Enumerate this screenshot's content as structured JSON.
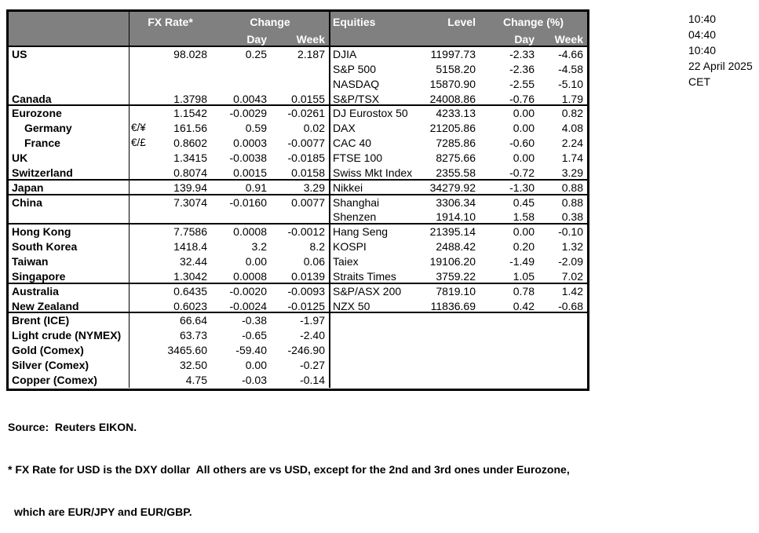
{
  "header": {
    "fx_rate": "FX Rate*",
    "change": "Change",
    "day_left": "Day",
    "week_left": "Week",
    "equities": "Equities",
    "level": "Level",
    "change_pct": "Change (%)",
    "day_right": "Day",
    "week_right": "Week"
  },
  "rows": [
    {
      "name": "US",
      "pair": "",
      "rate": "98.028",
      "day": "0.25",
      "week": "2.187",
      "eq": "DJIA",
      "level": "11997.73",
      "eday": "-2.33",
      "eweek": "-4.66",
      "indent": false,
      "sec": false
    },
    {
      "name": "",
      "pair": "",
      "rate": "",
      "day": "",
      "week": "",
      "eq": "S&P 500",
      "level": "5158.20",
      "eday": "-2.36",
      "eweek": "-4.58",
      "indent": false,
      "sec": false
    },
    {
      "name": "",
      "pair": "",
      "rate": "",
      "day": "",
      "week": "",
      "eq": "NASDAQ",
      "level": "15870.90",
      "eday": "-2.55",
      "eweek": "-5.10",
      "indent": false,
      "sec": false
    },
    {
      "name": "Canada",
      "pair": "",
      "rate": "1.3798",
      "day": "0.0043",
      "week": "0.0155",
      "eq": "S&P/TSX",
      "level": "24008.86",
      "eday": "-0.76",
      "eweek": "1.79",
      "indent": false,
      "sec": true
    },
    {
      "name": "Eurozone",
      "pair": "",
      "rate": "1.1542",
      "day": "-0.0029",
      "week": "-0.0261",
      "eq": "DJ Eurostox 50",
      "level": "4233.13",
      "eday": "0.00",
      "eweek": "0.82",
      "indent": false,
      "sec": false
    },
    {
      "name": "Germany",
      "pair": "€/¥",
      "rate": "161.56",
      "day": "0.59",
      "week": "0.02",
      "eq": "DAX",
      "level": "21205.86",
      "eday": "0.00",
      "eweek": "4.08",
      "indent": true,
      "sec": false
    },
    {
      "name": "France",
      "pair": "€/£",
      "rate": "0.8602",
      "day": "0.0003",
      "week": "-0.0077",
      "eq": "CAC 40",
      "level": "7285.86",
      "eday": "-0.60",
      "eweek": "2.24",
      "indent": true,
      "sec": false
    },
    {
      "name": "UK",
      "pair": "",
      "rate": "1.3415",
      "day": "-0.0038",
      "week": "-0.0185",
      "eq": "FTSE 100",
      "level": "8275.66",
      "eday": "0.00",
      "eweek": "1.74",
      "indent": false,
      "sec": false
    },
    {
      "name": "Switzerland",
      "pair": "",
      "rate": "0.8074",
      "day": "0.0015",
      "week": "0.0158",
      "eq": "Swiss Mkt Index",
      "level": "2355.58",
      "eday": "-0.72",
      "eweek": "3.29",
      "indent": false,
      "sec": true
    },
    {
      "name": "Japan",
      "pair": "",
      "rate": "139.94",
      "day": "0.91",
      "week": "3.29",
      "eq": "Nikkei",
      "level": "34279.92",
      "eday": "-1.30",
      "eweek": "0.88",
      "indent": false,
      "sec": true
    },
    {
      "name": "China",
      "pair": "",
      "rate": "7.3074",
      "day": "-0.0160",
      "week": "0.0077",
      "eq": "Shanghai",
      "level": "3306.34",
      "eday": "0.45",
      "eweek": "0.88",
      "indent": false,
      "sec": false
    },
    {
      "name": "",
      "pair": "",
      "rate": "",
      "day": "",
      "week": "",
      "eq": "Shenzen",
      "level": "1914.10",
      "eday": "1.58",
      "eweek": "0.38",
      "indent": false,
      "sec": true
    },
    {
      "name": "Hong Kong",
      "pair": "",
      "rate": "7.7586",
      "day": "0.0008",
      "week": "-0.0012",
      "eq": "Hang Seng",
      "level": "21395.14",
      "eday": "0.00",
      "eweek": "-0.10",
      "indent": false,
      "sec": false
    },
    {
      "name": "South Korea",
      "pair": "",
      "rate": "1418.4",
      "day": "3.2",
      "week": "8.2",
      "eq": "KOSPI",
      "level": "2488.42",
      "eday": "0.20",
      "eweek": "1.32",
      "indent": false,
      "sec": false
    },
    {
      "name": "Taiwan",
      "pair": "",
      "rate": "32.44",
      "day": "0.00",
      "week": "0.06",
      "eq": "Taiex",
      "level": "19106.20",
      "eday": "-1.49",
      "eweek": "-2.09",
      "indent": false,
      "sec": false
    },
    {
      "name": "Singapore",
      "pair": "",
      "rate": "1.3042",
      "day": "0.0008",
      "week": "0.0139",
      "eq": "Straits Times",
      "level": "3759.22",
      "eday": "1.05",
      "eweek": "7.02",
      "indent": false,
      "sec": true
    },
    {
      "name": "Australia",
      "pair": "",
      "rate": "0.6435",
      "day": "-0.0020",
      "week": "-0.0093",
      "eq": "S&P/ASX 200",
      "level": "7819.10",
      "eday": "0.78",
      "eweek": "1.42",
      "indent": false,
      "sec": false
    },
    {
      "name": "New Zealand",
      "pair": "",
      "rate": "0.6023",
      "day": "-0.0024",
      "week": "-0.0125",
      "eq": "NZX 50",
      "level": "11836.69",
      "eday": "0.42",
      "eweek": "-0.68",
      "indent": false,
      "sec": true
    },
    {
      "name": "Brent (ICE)",
      "pair": "",
      "rate": "66.64",
      "day": "-0.38",
      "week": "-1.97",
      "eq": "",
      "level": "",
      "eday": "",
      "eweek": "",
      "indent": false,
      "sec": false
    },
    {
      "name": "Light crude (NYMEX)",
      "pair": "",
      "rate": "63.73",
      "day": "-0.65",
      "week": "-2.40",
      "eq": "",
      "level": "",
      "eday": "",
      "eweek": "",
      "indent": false,
      "sec": false
    },
    {
      "name": "Gold (Comex)",
      "pair": "",
      "rate": "3465.60",
      "day": "-59.40",
      "week": "-246.90",
      "eq": "",
      "level": "",
      "eday": "",
      "eweek": "",
      "indent": false,
      "sec": false
    },
    {
      "name": "Silver (Comex)",
      "pair": "",
      "rate": "32.50",
      "day": "0.00",
      "week": "-0.27",
      "eq": "",
      "level": "",
      "eday": "",
      "eweek": "",
      "indent": false,
      "sec": false
    },
    {
      "name": "Copper (Comex)",
      "pair": "",
      "rate": "4.75",
      "day": "-0.03",
      "week": "-0.14",
      "eq": "",
      "level": "",
      "eday": "",
      "eweek": "",
      "indent": false,
      "sec": false
    }
  ],
  "timestamps": [
    "10:40",
    "04:40",
    "10:40",
    "22 April 2025",
    "CET"
  ],
  "footer": {
    "source": "Source:  Reuters EIKON.",
    "note1": "* FX Rate for USD is the DXY dollar  All others are vs USD, except for the 2nd and 3rd ones under Eurozone,",
    "note2": "which are EUR/JPY and EUR/GBP."
  },
  "colors": {
    "header_bg": "#808080",
    "header_text": "#ffffff",
    "border": "#000000",
    "text": "#000000"
  }
}
